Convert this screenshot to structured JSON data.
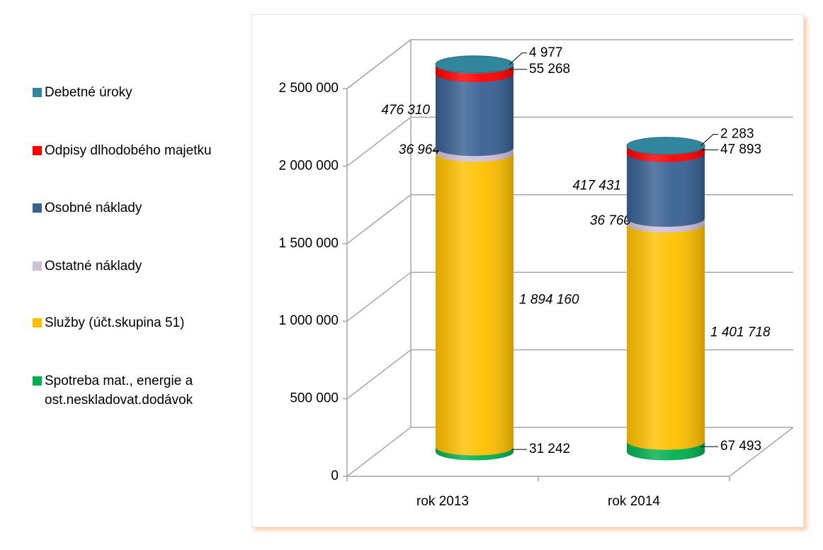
{
  "chart_data": {
    "type": "bar",
    "categories": [
      "rok 2013",
      "rok 2014"
    ],
    "series": [
      {
        "name": "Spotreba mat., energie a ost.neskladovat.dodávok",
        "color": "#00b050",
        "values": [
          31242,
          67493
        ],
        "value_labels": [
          "31 242",
          "67 493"
        ]
      },
      {
        "name": "Služby (účt.skupina 51)",
        "color": "#ffc000",
        "values": [
          1894160,
          1401718
        ],
        "value_labels": [
          "1 894 160",
          "1 401 718"
        ]
      },
      {
        "name": "Ostatné náklady",
        "color": "#ccc0da",
        "values": [
          36964,
          36760
        ],
        "value_labels": [
          "36 964",
          "36 760"
        ]
      },
      {
        "name": "Osobné náklady",
        "color": "#376092",
        "values": [
          476310,
          417431
        ],
        "value_labels": [
          "476 310",
          "417 431"
        ]
      },
      {
        "name": "Odpisy dlhodobého majetku",
        "color": "#ff0000",
        "values": [
          55268,
          47893
        ],
        "value_labels": [
          "55 268",
          "47 893"
        ]
      },
      {
        "name": "Debetné úroky",
        "color": "#31859c",
        "values": [
          4977,
          2283
        ],
        "value_labels": [
          "4 977",
          "2 283"
        ]
      }
    ],
    "ylim": [
      0,
      2500000
    ],
    "yticks": [
      0,
      {
        "value": 500000,
        "label": "500 000"
      },
      {
        "value": 1000000,
        "label": "1 000 000"
      },
      {
        "value": 1500000,
        "label": "1 500 000"
      },
      {
        "value": 2000000,
        "label": "2 000 000"
      },
      {
        "value": 2500000,
        "label": "2 500 000"
      }
    ],
    "grid": true,
    "stacked": true,
    "legend": "left"
  }
}
